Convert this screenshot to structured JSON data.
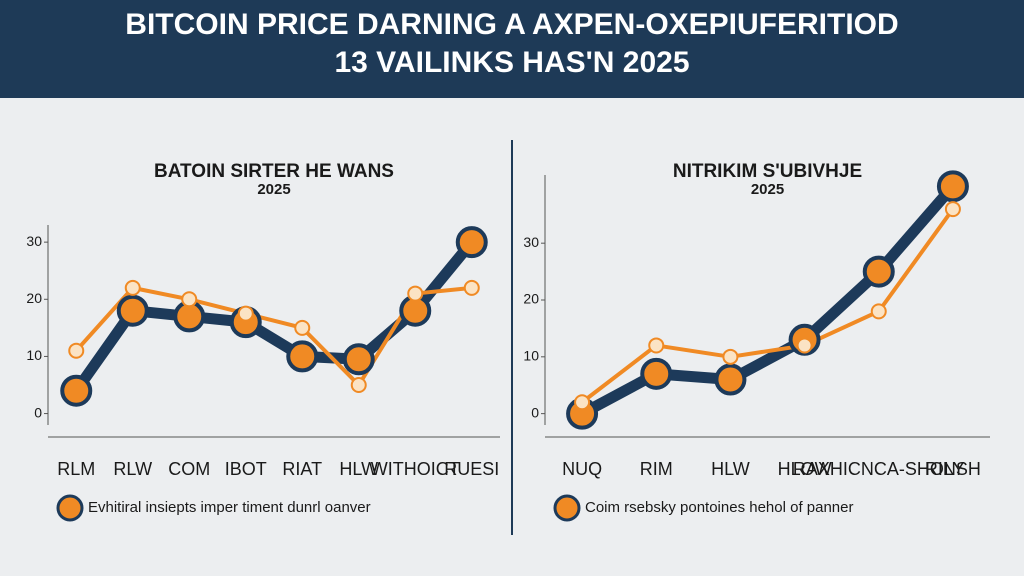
{
  "header": {
    "title": [
      "BITCOIN PRICE DARNING A AXPEN-OXEPIUFERITIOD",
      "13 VAILINKS HAS'N 2025"
    ]
  },
  "chart_data": [
    {
      "type": "line",
      "title": "BATOIN SIRTER HE WANS",
      "subtitle": "2025",
      "categories": [
        "RLM",
        "RLW",
        "COM",
        "IBOT",
        "RIAT",
        "HLW",
        "WITHOICT",
        "RUESI"
      ],
      "series": [
        {
          "name": "Evhitiral insiepts imper timent dunrl oanver",
          "color": "#1d3a5a",
          "values": [
            4,
            18,
            17,
            16,
            10,
            9.5,
            18,
            30
          ]
        },
        {
          "color": "#f08a24",
          "values": [
            11,
            22,
            20,
            17.5,
            15,
            5,
            21,
            22
          ]
        }
      ],
      "ylim": [
        -2,
        33
      ],
      "yticks": [
        0,
        10,
        20,
        30
      ]
    },
    {
      "type": "line",
      "title": "NITRIKIM S'UBIVHJE",
      "subtitle": "2025",
      "categories": [
        "NUQ",
        "RIM",
        "HLW",
        "HLOW",
        "RAXHICNCA-SHOLY",
        "RINSH"
      ],
      "series": [
        {
          "name": "Coim rsebsky pontoines hehol of panner",
          "color": "#1d3a5a",
          "values": [
            0,
            7,
            6,
            13,
            25,
            40
          ]
        },
        {
          "color": "#f08a24",
          "values": [
            2,
            12,
            10,
            12,
            18,
            36
          ]
        }
      ],
      "ylim": [
        -2,
        42
      ],
      "yticks": [
        0,
        10,
        20,
        30
      ]
    }
  ]
}
